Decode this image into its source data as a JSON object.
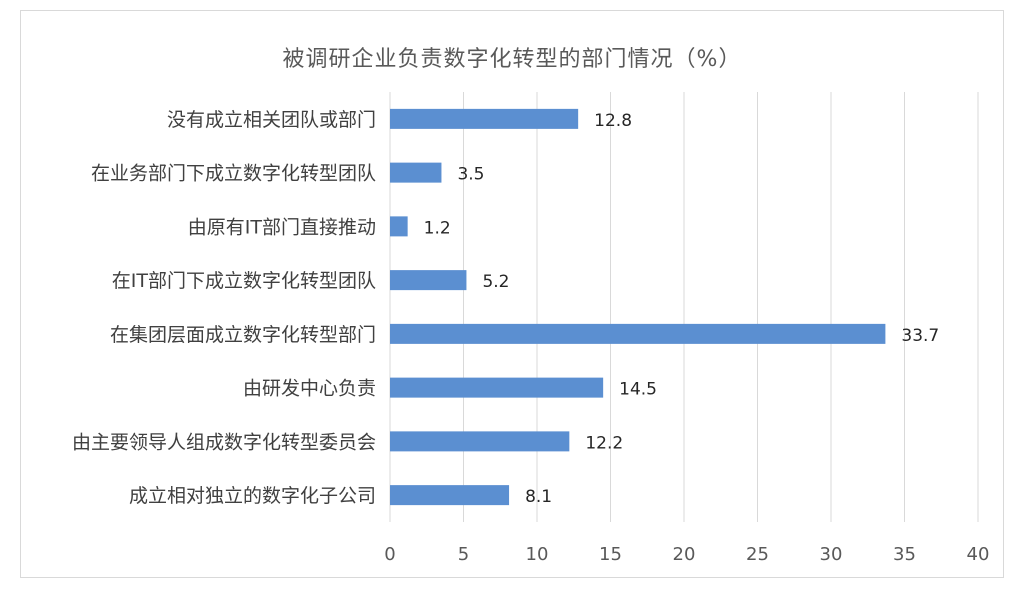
{
  "chart_data": {
    "type": "bar",
    "orientation": "horizontal",
    "title": "被调研企业负责数字化转型的部门情况（%）",
    "categories": [
      "没有成立相关团队或部门",
      "在业务部门下成立数字化转型团队",
      "由原有IT部门直接推动",
      "在IT部门下成立数字化转型团队",
      "在集团层面成立数字化转型部门",
      "由研发中心负责",
      "由主要领导人组成数字化转型委员会",
      "成立相对独立的数字化子公司"
    ],
    "values": [
      12.8,
      3.5,
      1.2,
      5.2,
      33.7,
      14.5,
      12.2,
      8.1
    ],
    "value_labels": [
      "12.8",
      "3.5",
      "1.2",
      "5.2",
      "33.7",
      "14.5",
      "12.2",
      "8.1"
    ],
    "xlim": [
      0,
      40
    ],
    "xticks": [
      "0",
      "5",
      "10",
      "15",
      "20",
      "25",
      "30",
      "35",
      "40"
    ],
    "xtick_values": [
      0,
      5,
      10,
      15,
      20,
      25,
      30,
      35,
      40
    ],
    "grid": true,
    "legend": "none",
    "bar_color": "#5b8fd1",
    "grid_color": "#d9d9d9"
  }
}
